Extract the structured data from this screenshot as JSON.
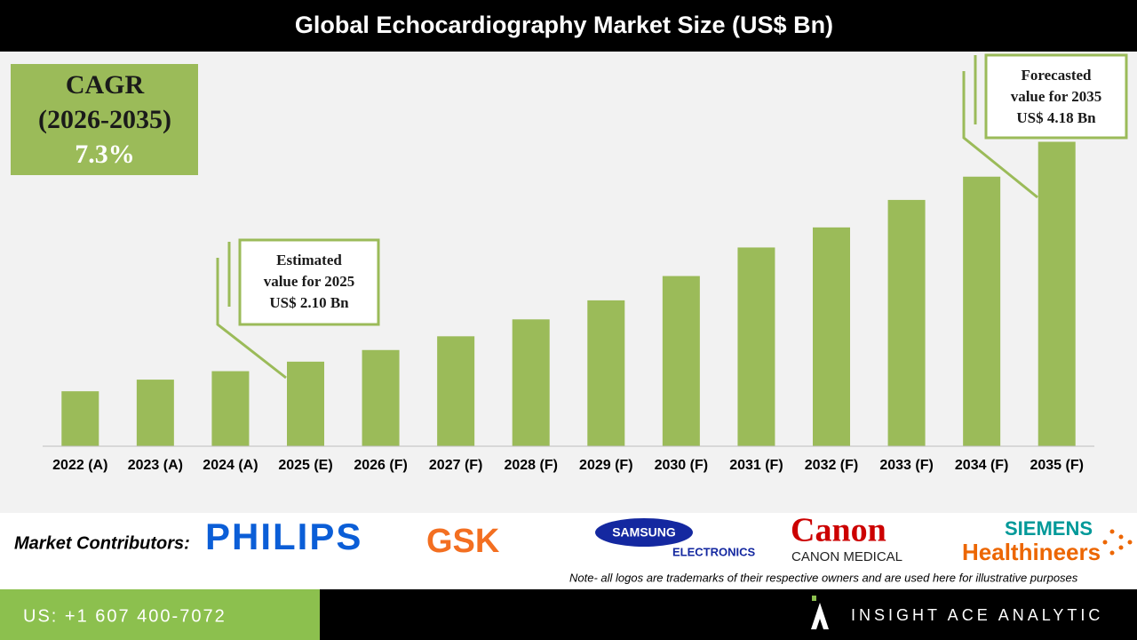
{
  "chart_data": {
    "type": "bar",
    "title": "Global Echocardiography Market Size (US$ Bn)",
    "categories": [
      "2022 (A)",
      "2023 (A)",
      "2024 (A)",
      "2025 (E)",
      "2026 (F)",
      "2027 (F)",
      "2028 (F)",
      "2029 (F)",
      "2030 (F)",
      "2031 (F)",
      "2032 (F)",
      "2033 (F)",
      "2034 (F)",
      "2035 (F)"
    ],
    "values": [
      1.82,
      1.93,
      2.01,
      2.1,
      2.21,
      2.34,
      2.5,
      2.68,
      2.91,
      3.18,
      3.37,
      3.63,
      3.85,
      4.18
    ],
    "color": "#9bbb59",
    "ylim": [
      1.3,
      5.0
    ],
    "cagr": [
      "CAGR",
      "(2026-2035)",
      "7.3%"
    ],
    "annotations": [
      {
        "lines": [
          "Estimated",
          "value for 2025",
          "US$ 2.10 Bn"
        ]
      },
      {
        "lines": [
          "Forecasted",
          "value for 2035",
          "US$ 4.18 Bn"
        ]
      }
    ]
  },
  "footer": {
    "contributors_label": "Market Contributors:",
    "logos": [
      "PHILIPS",
      "GSK",
      "SAMSUNG",
      "ELECTRONICS",
      "Canon",
      "CANON MEDICAL",
      "SIEMENS",
      "Healthineers"
    ],
    "note": "Note- all logos are trademarks of their respective owners and are used here for illustrative purposes",
    "phone": "US: +1 607 400-7072",
    "brand": "INSIGHT ACE ANALYTIC"
  }
}
